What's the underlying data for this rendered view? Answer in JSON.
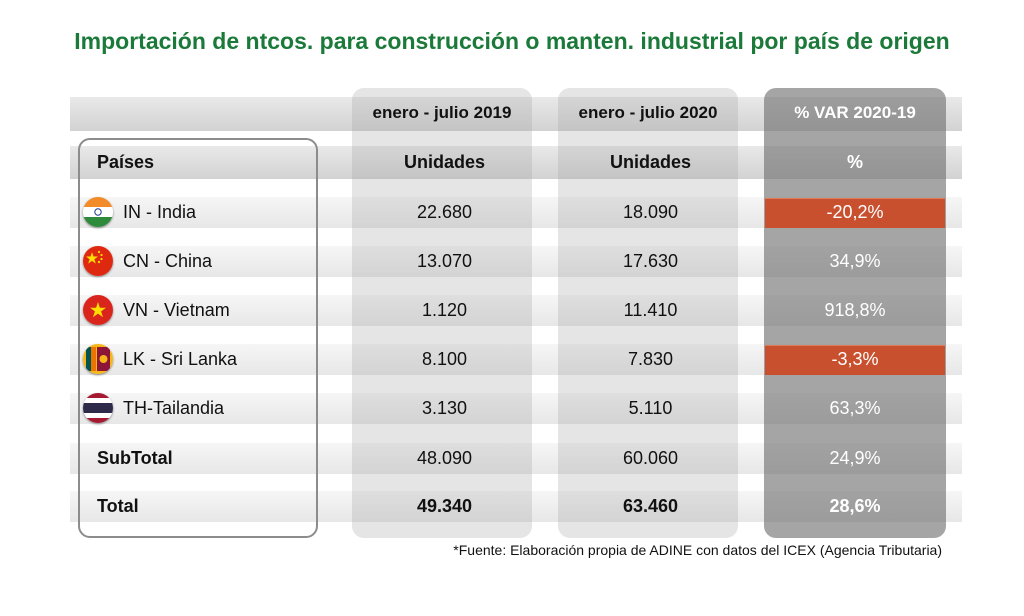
{
  "title": "Importación de ntcos. para construcción o manten. industrial por país de origen",
  "periods": {
    "p2019": "enero - julio 2019",
    "p2020": "enero - julio 2020",
    "var": "% VAR 2020-19"
  },
  "headers": {
    "country": "Países",
    "units_2019": "Unidades",
    "units_2020": "Unidades",
    "var": "%"
  },
  "rows": [
    {
      "flag": "india-flag-icon",
      "country": "IN - India",
      "u2019": "22.680",
      "u2020": "18.090",
      "var": "-20,2%",
      "negative": true
    },
    {
      "flag": "china-flag-icon",
      "country": "CN - China",
      "u2019": "13.070",
      "u2020": "17.630",
      "var": "34,9%",
      "negative": false
    },
    {
      "flag": "vietnam-flag-icon",
      "country": "VN - Vietnam",
      "u2019": "1.120",
      "u2020": "11.410",
      "var": "918,8%",
      "negative": false
    },
    {
      "flag": "sri-lanka-flag-icon",
      "country": "LK - Sri Lanka",
      "u2019": "8.100",
      "u2020": "7.830",
      "var": "-3,3%",
      "negative": true
    },
    {
      "flag": "thailand-flag-icon",
      "country": "TH-Tailandia",
      "u2019": "3.130",
      "u2020": "5.110",
      "var": "63,3%",
      "negative": false
    }
  ],
  "subtotal": {
    "label": "SubTotal",
    "u2019": "48.090",
    "u2020": "60.060",
    "var": "24,9%"
  },
  "total": {
    "label": "Total",
    "u2019": "49.340",
    "u2020": "63.460",
    "var": "28,6%"
  },
  "footnote": "*Fuente: Elaboración propia de ADINE con datos del ICEX (Agencia Tributaria)",
  "colors": {
    "title": "#1b7a3a",
    "negative_highlight": "#c9502e",
    "var_text": "#ffffff"
  },
  "chart_data": {
    "type": "table",
    "title": "Importación de ntcos. para construcción o manten. industrial por país de origen",
    "columns": [
      "Países",
      "enero - julio 2019 (Unidades)",
      "enero - julio 2020 (Unidades)",
      "% VAR 2020-19"
    ],
    "categories": [
      "IN - India",
      "CN - China",
      "VN - Vietnam",
      "LK - Sri Lanka",
      "TH-Tailandia",
      "SubTotal",
      "Total"
    ],
    "series": [
      {
        "name": "enero - julio 2019",
        "values": [
          22680,
          13070,
          1120,
          8100,
          3130,
          48090,
          49340
        ]
      },
      {
        "name": "enero - julio 2020",
        "values": [
          18090,
          17630,
          11410,
          7830,
          5110,
          60060,
          63460
        ]
      },
      {
        "name": "% VAR 2020-19",
        "values": [
          -20.2,
          34.9,
          918.8,
          -3.3,
          63.3,
          24.9,
          28.6
        ]
      }
    ]
  }
}
